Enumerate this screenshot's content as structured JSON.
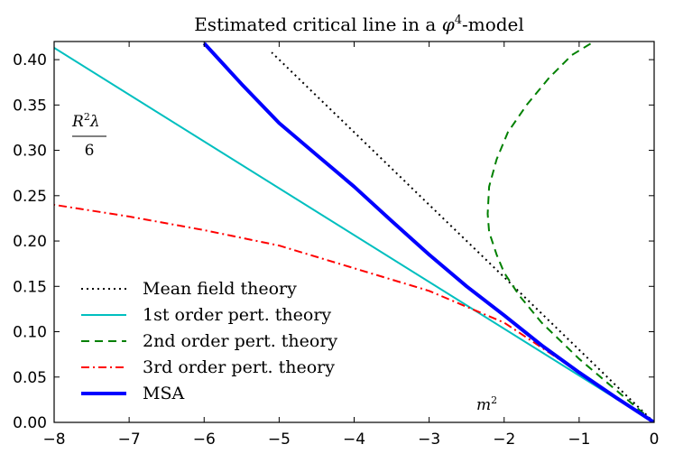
{
  "chart_data": {
    "type": "line",
    "title_prefix": "Estimated critical line in a ",
    "title_symbol": "φ",
    "title_exponent": "4",
    "title_suffix": "-model",
    "xlabel_base": "m",
    "xlabel_exp": "2",
    "ylabel_num_base": "R",
    "ylabel_num_exp": "2",
    "ylabel_num_sym": "λ",
    "ylabel_den": "6",
    "xlim": [
      -8,
      0
    ],
    "ylim": [
      0,
      0.42
    ],
    "xticks": [
      -8,
      -7,
      -6,
      -5,
      -4,
      -3,
      -2,
      -1,
      0
    ],
    "xtick_labels": [
      "−8",
      "−7",
      "−6",
      "−5",
      "−4",
      "−3",
      "−2",
      "−1",
      "0"
    ],
    "yticks": [
      0,
      0.05,
      0.1,
      0.15,
      0.2,
      0.25,
      0.3,
      0.35,
      0.4
    ],
    "ytick_labels": [
      "0.00",
      "0.05",
      "0.10",
      "0.15",
      "0.20",
      "0.25",
      "0.30",
      "0.35",
      "0.40"
    ],
    "grid": false,
    "legend_position": "lower-left",
    "series": [
      {
        "name": "Mean field theory",
        "color": "#000000",
        "style": "dotted",
        "x": [
          0,
          -0.5,
          -1.0,
          -1.5,
          -2.0,
          -2.5,
          -3.0,
          -3.5,
          -4.0,
          -4.5,
          -5.0,
          -5.1
        ],
        "y": [
          0,
          0.04,
          0.08,
          0.12,
          0.16,
          0.2,
          0.24,
          0.28,
          0.32,
          0.36,
          0.4,
          0.408
        ]
      },
      {
        "name": "1st order pert. theory",
        "color": "#00bfbf",
        "style": "solid",
        "x": [
          0,
          -8
        ],
        "y": [
          0,
          0.413
        ]
      },
      {
        "name": "2nd order pert. theory",
        "color": "#008000",
        "style": "dashed",
        "x": [
          0,
          -0.5,
          -1.0,
          -1.5,
          -1.8,
          -2.0,
          -2.1,
          -2.2,
          -2.22,
          -2.2,
          -2.1,
          -1.95,
          -1.7,
          -1.4,
          -1.1,
          -0.8
        ],
        "y": [
          0,
          0.035,
          0.07,
          0.11,
          0.14,
          0.165,
          0.185,
          0.21,
          0.23,
          0.26,
          0.29,
          0.32,
          0.35,
          0.38,
          0.405,
          0.42
        ]
      },
      {
        "name": "3rd order pert. theory",
        "color": "#ff0000",
        "style": "dashdot",
        "x": [
          0,
          -1.0,
          -2.0,
          -3.0,
          -4.0,
          -5.0,
          -6.0,
          -7.0,
          -8.0
        ],
        "y": [
          0,
          0.055,
          0.11,
          0.145,
          0.17,
          0.195,
          0.212,
          0.227,
          0.24
        ]
      },
      {
        "name": "MSA",
        "color": "#0000ff",
        "style": "solid-thick",
        "x": [
          0,
          -0.5,
          -1.0,
          -1.5,
          -2.0,
          -2.5,
          -3.0,
          -3.5,
          -4.0,
          -4.5,
          -5.0,
          -5.5,
          -6.0
        ],
        "y": [
          0,
          0.027,
          0.055,
          0.085,
          0.118,
          0.15,
          0.185,
          0.222,
          0.26,
          0.295,
          0.33,
          0.373,
          0.418
        ]
      }
    ]
  }
}
